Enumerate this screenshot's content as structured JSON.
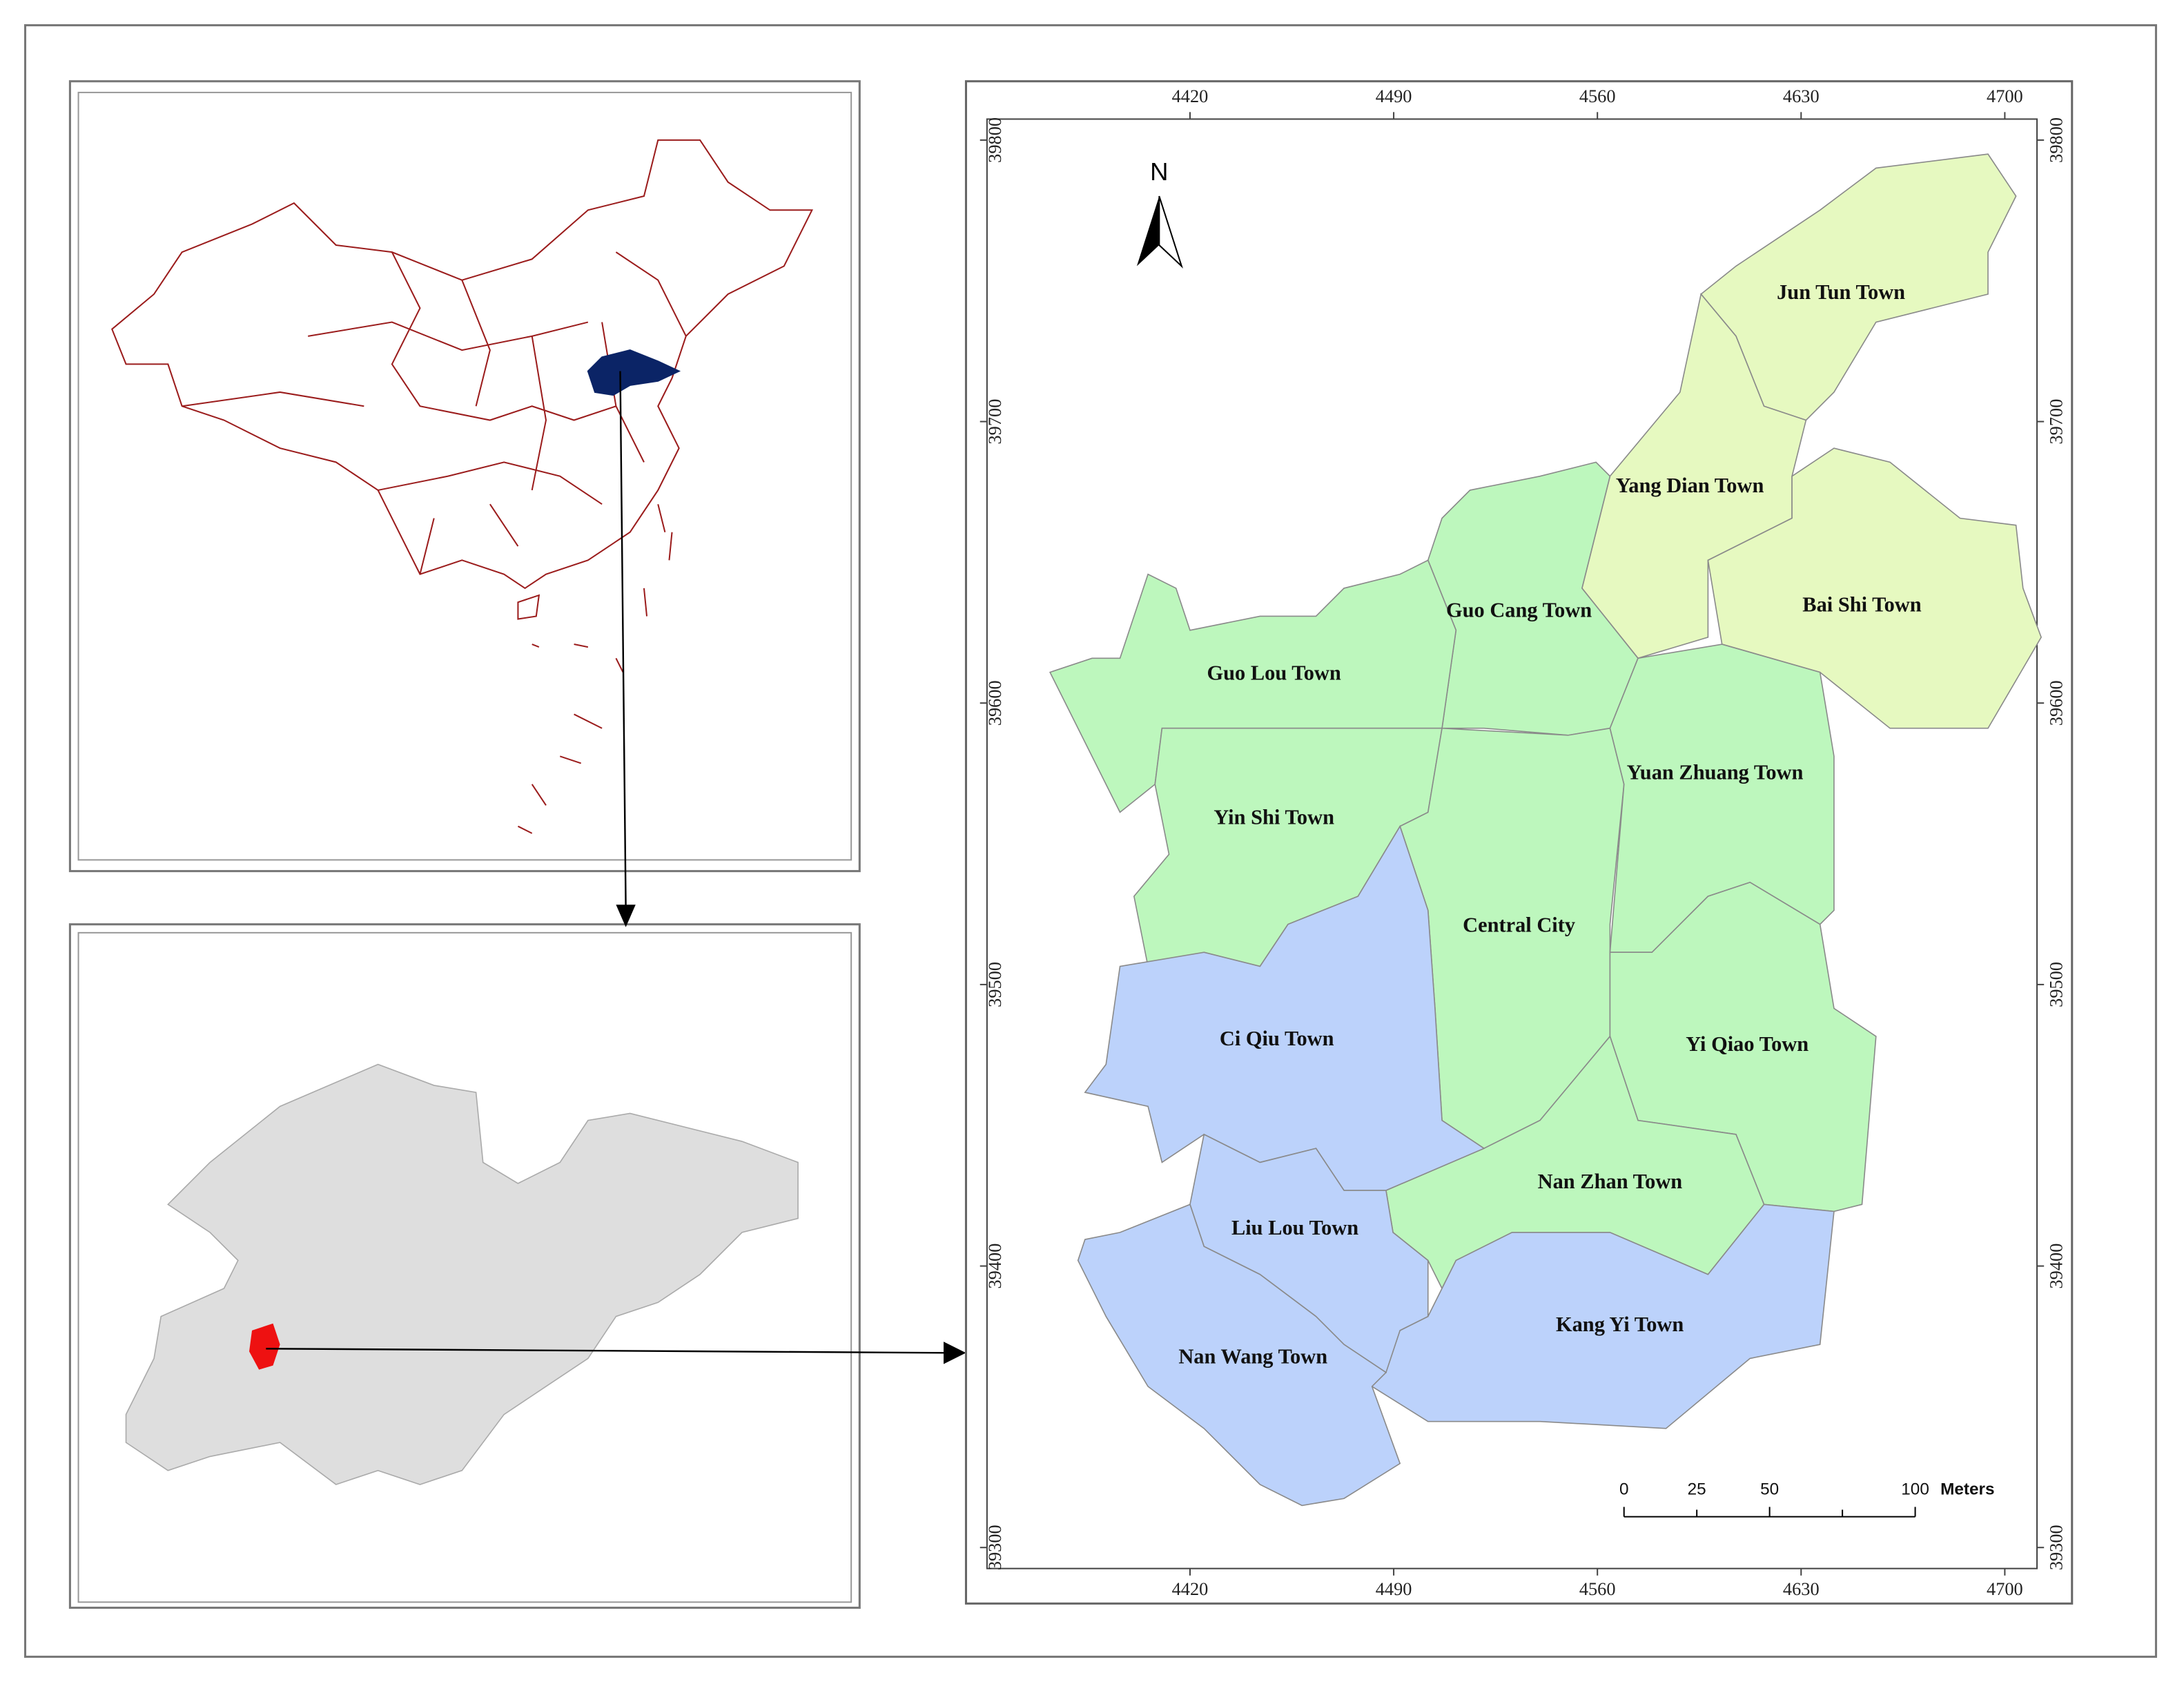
{
  "north": "N",
  "towns": [
    {
      "name": "Jun Tun Town"
    },
    {
      "name": "Yang Dian Town"
    },
    {
      "name": "Bai Shi Town"
    },
    {
      "name": "Guo Cang Town"
    },
    {
      "name": "Guo Lou Town"
    },
    {
      "name": "Yin Shi Town"
    },
    {
      "name": "Central City"
    },
    {
      "name": "Yuan Zhuang Town"
    },
    {
      "name": "Yi Qiao Town"
    },
    {
      "name": "Ci Qiu Town"
    },
    {
      "name": "Nan Zhan Town"
    },
    {
      "name": "Liu Lou Town"
    },
    {
      "name": "Kang Yi Town"
    },
    {
      "name": "Nan Wang Town"
    }
  ],
  "axis": {
    "x_ticks": [
      4420,
      4490,
      4560,
      4630,
      4700
    ],
    "y_ticks": [
      39800,
      39700,
      39600,
      39500,
      39400,
      39300
    ]
  },
  "scale_bar": {
    "ticks": [
      0,
      25,
      50,
      100
    ],
    "unit": "Meters"
  }
}
